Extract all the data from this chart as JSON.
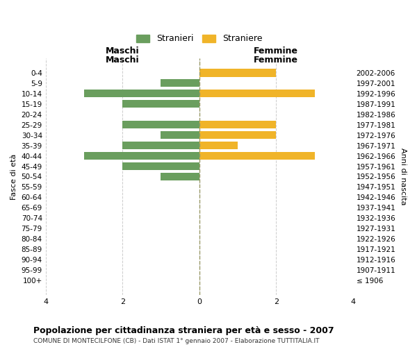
{
  "age_groups": [
    "100+",
    "95-99",
    "90-94",
    "85-89",
    "80-84",
    "75-79",
    "70-74",
    "65-69",
    "60-64",
    "55-59",
    "50-54",
    "45-49",
    "40-44",
    "35-39",
    "30-34",
    "25-29",
    "20-24",
    "15-19",
    "10-14",
    "5-9",
    "0-4"
  ],
  "birth_years": [
    "≤ 1906",
    "1907-1911",
    "1912-1916",
    "1917-1921",
    "1922-1926",
    "1927-1931",
    "1932-1936",
    "1937-1941",
    "1942-1946",
    "1947-1951",
    "1952-1956",
    "1957-1961",
    "1962-1966",
    "1967-1971",
    "1972-1976",
    "1977-1981",
    "1982-1986",
    "1987-1991",
    "1992-1996",
    "1997-2001",
    "2002-2006"
  ],
  "maschi": [
    0,
    0,
    0,
    0,
    0,
    0,
    0,
    0,
    0,
    0,
    1,
    2,
    3,
    2,
    1,
    2,
    0,
    2,
    3,
    1,
    0
  ],
  "femmine": [
    0,
    0,
    0,
    0,
    0,
    0,
    0,
    0,
    0,
    0,
    0,
    0,
    3,
    1,
    2,
    2,
    0,
    0,
    3,
    0,
    2
  ],
  "maschi_color": "#6a9e5e",
  "femmine_color": "#f0b429",
  "title": "Popolazione per cittadinanza straniera per età e sesso - 2007",
  "subtitle": "COMUNE DI MONTECILFONE (CB) - Dati ISTAT 1° gennaio 2007 - Elaborazione TUTTITALIA.IT",
  "xlabel_left": "Maschi",
  "xlabel_right": "Femmine",
  "ylabel_left": "Fasce di età",
  "ylabel_right": "Anni di nascita",
  "legend_maschi": "Stranieri",
  "legend_femmine": "Straniere",
  "xlim": 4,
  "background_color": "#ffffff",
  "grid_color": "#cccccc"
}
